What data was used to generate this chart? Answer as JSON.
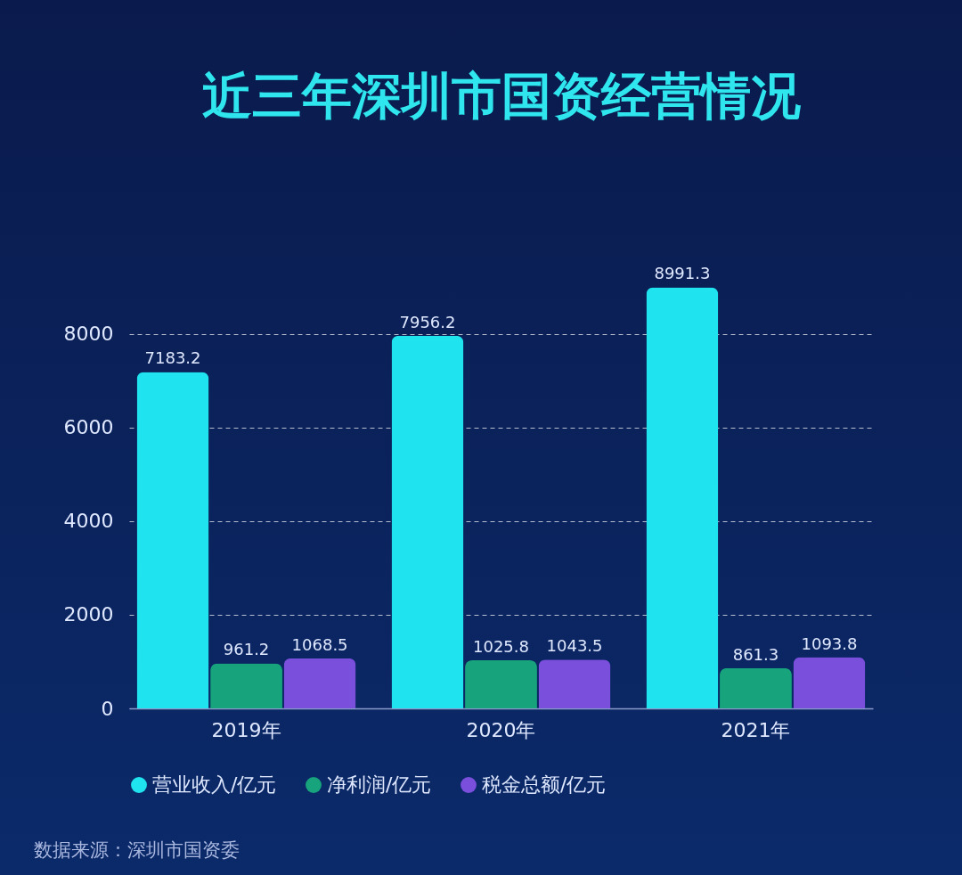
{
  "chart_data": {
    "type": "bar",
    "title": "近三年深圳市国资经营情况",
    "categories": [
      "2019年",
      "2020年",
      "2021年"
    ],
    "series": [
      {
        "name": "营业收入/亿元",
        "color": "#1fe3ee",
        "values": [
          7183.2,
          7956.2,
          8991.3
        ]
      },
      {
        "name": "净利润/亿元",
        "color": "#17a37c",
        "values": [
          961.2,
          1025.8,
          861.3
        ]
      },
      {
        "name": "税金总额/亿元",
        "color": "#7a4fdc",
        "values": [
          1068.5,
          1043.5,
          1093.8
        ]
      }
    ],
    "ylim": [
      0,
      9000
    ],
    "yticks": [
      0,
      2000,
      4000,
      6000,
      8000
    ],
    "grid": "y",
    "legend": "bottom",
    "data_labels": true,
    "annotations": [
      "数据来源：深圳市国资委"
    ]
  }
}
